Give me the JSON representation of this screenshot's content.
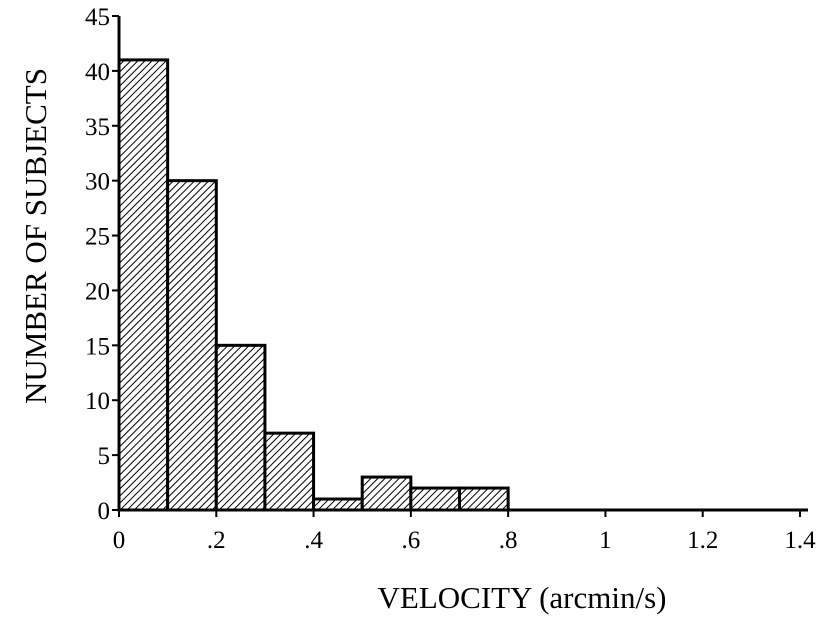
{
  "chart_data": {
    "type": "bar",
    "subtype": "histogram",
    "bin_edges": [
      0,
      0.1,
      0.2,
      0.3,
      0.4,
      0.5,
      0.6,
      0.7,
      0.8
    ],
    "values": [
      41,
      30,
      15,
      7,
      1,
      3,
      2,
      2
    ],
    "title": "",
    "xlabel": "VELOCITY (arcmin/s)",
    "ylabel": "NUMBER OF SUBJECTS",
    "xlim": [
      0,
      1.4
    ],
    "ylim": [
      0,
      45
    ],
    "x_ticks": [
      {
        "value": 0,
        "label": "0"
      },
      {
        "value": 0.2,
        "label": ".2"
      },
      {
        "value": 0.4,
        "label": ".4"
      },
      {
        "value": 0.6,
        "label": ".6"
      },
      {
        "value": 0.8,
        "label": ".8"
      },
      {
        "value": 1.0,
        "label": "1"
      },
      {
        "value": 1.2,
        "label": "1.2"
      },
      {
        "value": 1.4,
        "label": "1.4"
      }
    ],
    "y_ticks": [
      {
        "value": 0,
        "label": "0"
      },
      {
        "value": 5,
        "label": "5"
      },
      {
        "value": 10,
        "label": "10"
      },
      {
        "value": 15,
        "label": "15"
      },
      {
        "value": 20,
        "label": "20"
      },
      {
        "value": 25,
        "label": "25"
      },
      {
        "value": 30,
        "label": "30"
      },
      {
        "value": 35,
        "label": "35"
      },
      {
        "value": 40,
        "label": "40"
      },
      {
        "value": 45,
        "label": "45"
      }
    ],
    "grid": false,
    "bar_fill": "hatched-diagonal",
    "colors": {
      "ink": "#000000",
      "background": "#ffffff"
    }
  }
}
